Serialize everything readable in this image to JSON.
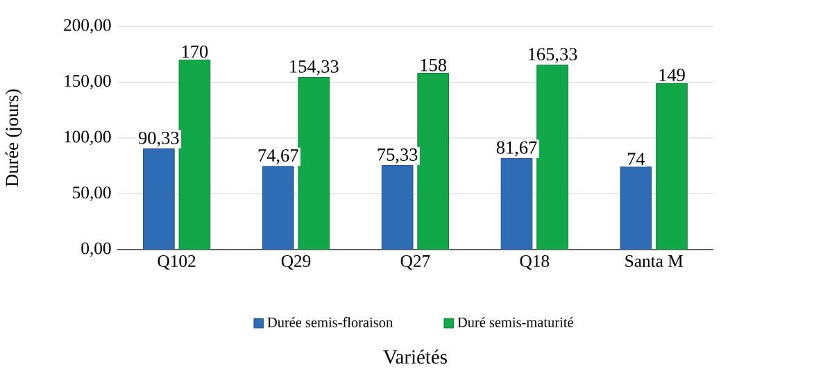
{
  "chart_data": {
    "type": "bar",
    "xlabel": "Variétés",
    "ylabel": "Durée (jours)",
    "categories": [
      "Q102",
      "Q29",
      "Q27",
      "Q18",
      "Santa M"
    ],
    "series": [
      {
        "name": "Durée semis-floraison",
        "color": "#2e6db5",
        "values": [
          90.33,
          74.67,
          75.33,
          81.67,
          74
        ],
        "value_labels": [
          "90,33",
          "74,67",
          "75,33",
          "81,67",
          "74"
        ]
      },
      {
        "name": "Duré semis-maturité",
        "color": "#12a84a",
        "values": [
          170,
          154.33,
          158,
          165.33,
          149
        ],
        "value_labels": [
          "170",
          "154,33",
          "158",
          "165,33",
          "149"
        ]
      }
    ],
    "ylim": [
      0,
      200
    ],
    "yticks": [
      {
        "value": 0,
        "label": "0,00"
      },
      {
        "value": 50,
        "label": "50,00"
      },
      {
        "value": 100,
        "label": "100,00"
      },
      {
        "value": 150,
        "label": "150,00"
      },
      {
        "value": 200,
        "label": "200,00"
      }
    ],
    "grid": "y",
    "legend": "bottom"
  }
}
